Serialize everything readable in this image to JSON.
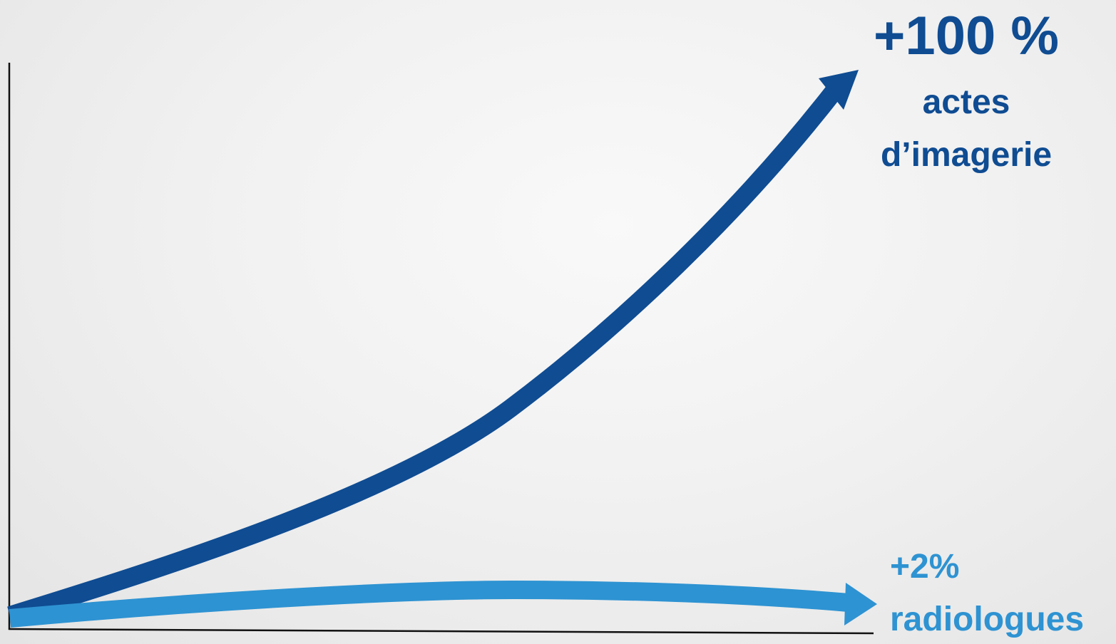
{
  "colors": {
    "imagerie": "#0f4c92",
    "radiologues": "#2e93d2",
    "axis": "#111111"
  },
  "imagerie": {
    "change": "+100 %",
    "label_line1": "actes",
    "label_line2": "d’imagerie"
  },
  "radiologues": {
    "change": "+2%",
    "label": "radiologues"
  }
}
